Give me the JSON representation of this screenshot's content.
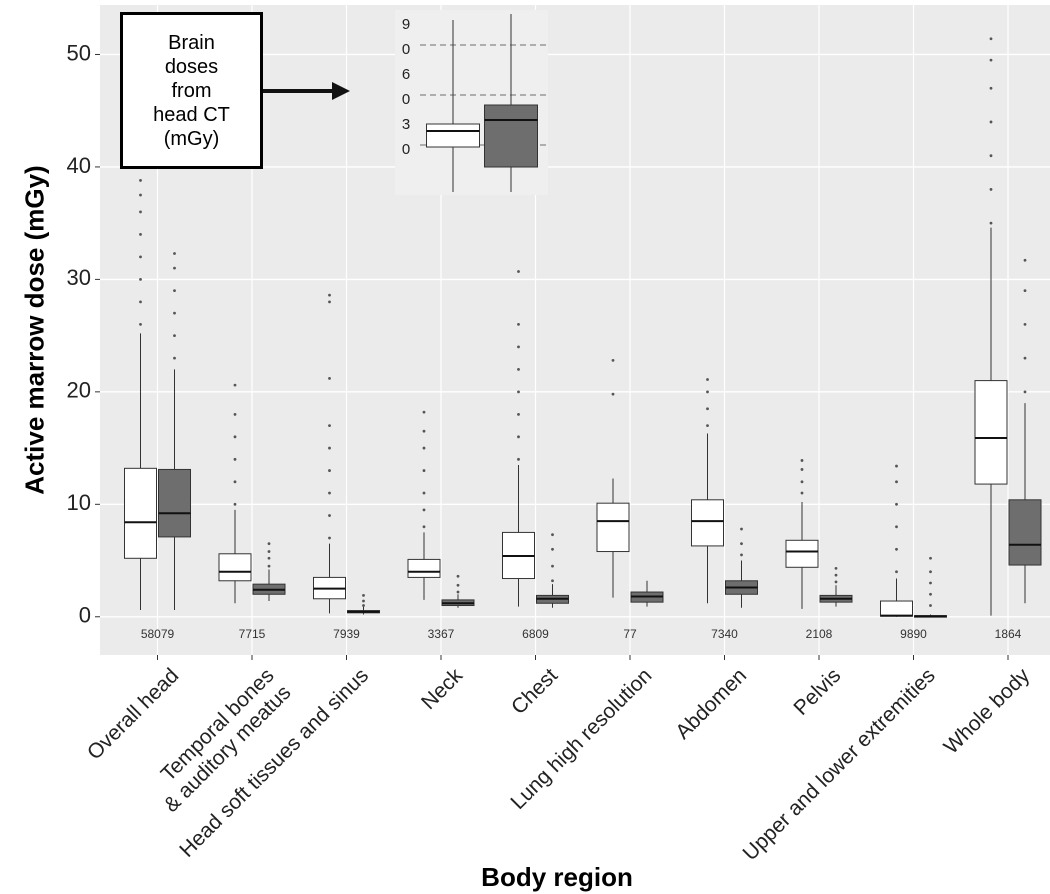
{
  "chart_data": [
    {
      "type": "box",
      "title": null,
      "y_label": "Active marrow dose (mGy)",
      "x_label": "Body region",
      "annotation": "Brain\ndoses\nfrom\nhead CT\n(mGy)",
      "categories": [
        "Overall head",
        "Temporal bones\n& auditory meatus",
        "Head soft tissues and sinus",
        "Neck",
        "Chest",
        "Lung high resolution",
        "Abdomen",
        "Pelvis",
        "Upper and lower extremities",
        "Whole body"
      ],
      "counts": [
        58079,
        7715,
        7939,
        3367,
        6809,
        77,
        7340,
        2108,
        9890,
        1864
      ],
      "ylim": [
        -3.4,
        54.4
      ],
      "yticks": [
        0,
        10,
        20,
        30,
        40,
        50
      ],
      "grid": true,
      "series": [
        {
          "color": "#ffffff",
          "boxes": [
            {
              "whislo": 0.6,
              "q1": 5.2,
              "med": 8.4,
              "q3": 13.2,
              "whishi": 25.2,
              "fliers": [
                26,
                28,
                30,
                32,
                34,
                36,
                37.5,
                38.8
              ]
            },
            {
              "whislo": 1.2,
              "q1": 3.2,
              "med": 4.0,
              "q3": 5.6,
              "whishi": 9.5,
              "fliers": [
                10,
                12,
                14,
                16,
                18,
                20.6
              ]
            },
            {
              "whislo": 0.3,
              "q1": 1.6,
              "med": 2.5,
              "q3": 3.5,
              "whishi": 6.5,
              "fliers": [
                7,
                9,
                11,
                13,
                15,
                17,
                21.2,
                28,
                28.6
              ]
            },
            {
              "whislo": 1.5,
              "q1": 3.5,
              "med": 4.0,
              "q3": 5.1,
              "whishi": 7.5,
              "fliers": [
                8,
                9.5,
                11,
                13,
                15,
                16.5,
                18.2
              ]
            },
            {
              "whislo": 0.9,
              "q1": 3.4,
              "med": 5.4,
              "q3": 7.5,
              "whishi": 13.5,
              "fliers": [
                14,
                16,
                18,
                20,
                22,
                24,
                26,
                30.7
              ]
            },
            {
              "whislo": 1.7,
              "q1": 5.8,
              "med": 8.5,
              "q3": 10.1,
              "whishi": 12.3,
              "fliers": [
                19.8,
                22.8
              ]
            },
            {
              "whislo": 1.2,
              "q1": 6.3,
              "med": 8.5,
              "q3": 10.4,
              "whishi": 16.3,
              "fliers": [
                17,
                18.5,
                20,
                21.1
              ]
            },
            {
              "whislo": 0.7,
              "q1": 4.4,
              "med": 5.8,
              "q3": 6.8,
              "whishi": 10.2,
              "fliers": [
                11,
                12,
                13.1,
                13.9
              ]
            },
            {
              "whislo": 0,
              "q1": 0.05,
              "med": 0.1,
              "q3": 1.4,
              "whishi": 3.4,
              "fliers": [
                4,
                6,
                8,
                10,
                12,
                13.4
              ]
            },
            {
              "whislo": 0.1,
              "q1": 11.8,
              "med": 15.9,
              "q3": 21.0,
              "whishi": 34.6,
              "fliers": [
                35,
                38,
                41,
                44,
                47,
                49.5,
                51.4
              ]
            }
          ]
        },
        {
          "color": "#6e6e6e",
          "boxes": [
            {
              "whislo": 0.6,
              "q1": 7.1,
              "med": 9.2,
              "q3": 13.1,
              "whishi": 22.0,
              "fliers": [
                23,
                25,
                27,
                29,
                31,
                32.3
              ]
            },
            {
              "whislo": 1.4,
              "q1": 2.0,
              "med": 2.4,
              "q3": 2.9,
              "whishi": 4.2,
              "fliers": [
                4.5,
                5.2,
                5.8,
                6.5
              ]
            },
            {
              "whislo": 0.2,
              "q1": 0.35,
              "med": 0.45,
              "q3": 0.55,
              "whishi": 0.9,
              "fliers": [
                1.0,
                1.4,
                1.9
              ]
            },
            {
              "whislo": 0.8,
              "q1": 1.0,
              "med": 1.2,
              "q3": 1.5,
              "whishi": 2.0,
              "fliers": [
                2.2,
                2.8,
                3.6
              ]
            },
            {
              "whislo": 0.8,
              "q1": 1.2,
              "med": 1.6,
              "q3": 1.9,
              "whishi": 2.9,
              "fliers": [
                3.2,
                4.5,
                6,
                7.3
              ]
            },
            {
              "whislo": 0.9,
              "q1": 1.3,
              "med": 1.8,
              "q3": 2.2,
              "whishi": 3.2,
              "fliers": []
            },
            {
              "whislo": 0.8,
              "q1": 2.0,
              "med": 2.6,
              "q3": 3.2,
              "whishi": 5.0,
              "fliers": [
                5.5,
                6.5,
                7.8
              ]
            },
            {
              "whislo": 0.9,
              "q1": 1.3,
              "med": 1.6,
              "q3": 1.9,
              "whishi": 2.8,
              "fliers": [
                3.1,
                3.7,
                4.3
              ]
            },
            {
              "whislo": 0,
              "q1": 0,
              "med": 0.05,
              "q3": 0.1,
              "whishi": 0.2,
              "fliers": [
                1,
                2,
                3,
                4,
                5.2
              ]
            },
            {
              "whislo": 1.2,
              "q1": 4.6,
              "med": 6.4,
              "q3": 10.4,
              "whishi": 19.0,
              "fliers": [
                20,
                23,
                26,
                29,
                31.7
              ]
            }
          ]
        }
      ]
    },
    {
      "type": "box",
      "categories": [
        null
      ],
      "ylim": [
        0,
        111
      ],
      "yticks": [
        {
          "value": 90,
          "label": "90"
        },
        {
          "value": 60,
          "label": "60"
        },
        {
          "value": 30,
          "label": "30"
        }
      ],
      "grid": true,
      "series": [
        {
          "color": "#ffffff",
          "boxes": [
            {
              "whislo": 1.8,
              "q1": 28.8,
              "med": 38.4,
              "q3": 42.6,
              "whishi": 105,
              "fliers": []
            }
          ]
        },
        {
          "color": "#6e6e6e",
          "boxes": [
            {
              "whislo": 1.8,
              "q1": 16.8,
              "med": 45,
              "q3": 54,
              "whishi": 108.6,
              "fliers": []
            }
          ]
        }
      ]
    }
  ]
}
